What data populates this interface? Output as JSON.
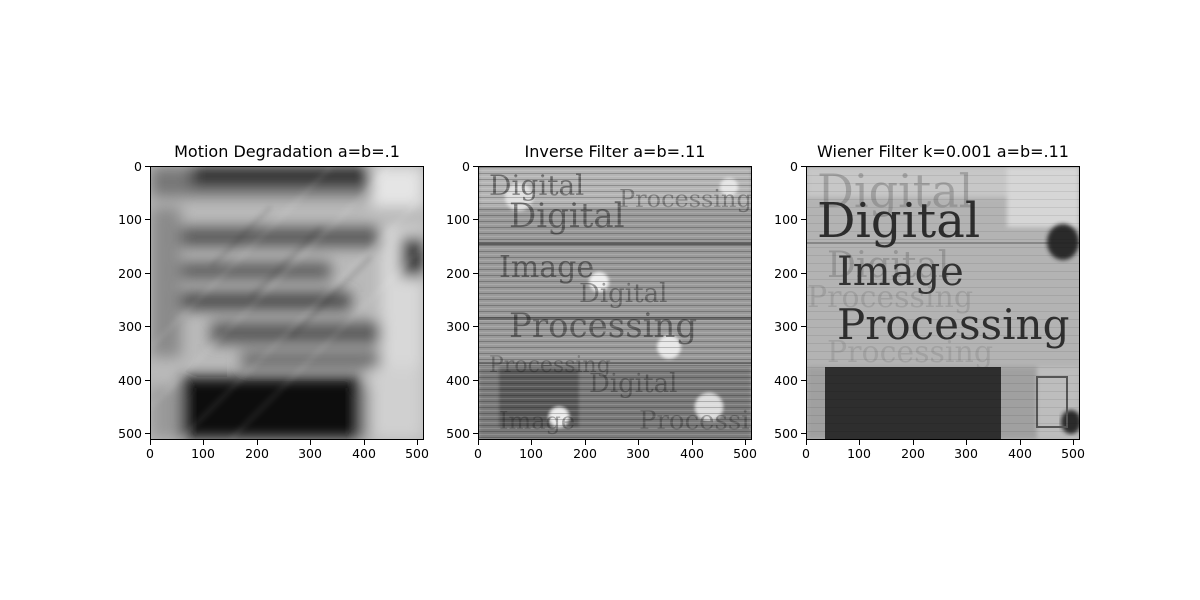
{
  "figure": {
    "panels": [
      {
        "title": "Motion Degradation a=b=.1",
        "image_description": "heavily motion-blurred grayscale image of printed text, diagonally streaked",
        "x_ticks": [
          "0",
          "100",
          "200",
          "300",
          "400",
          "500"
        ],
        "y_ticks": [
          "0",
          "100",
          "200",
          "300",
          "400",
          "500"
        ]
      },
      {
        "title": "Inverse Filter a=b=.11",
        "image_description": "noisy restored grayscale image with repeated ghosted overlapping text 'Digital Image Processing'",
        "x_ticks": [
          "0",
          "100",
          "200",
          "300",
          "400",
          "500"
        ],
        "y_ticks": [
          "0",
          "100",
          "200",
          "300",
          "400",
          "500"
        ],
        "ghost_text": [
          "Digital",
          "Image",
          "Processing",
          "Digital",
          "Processing"
        ]
      },
      {
        "title": "Wiener Filter k=0.001 a=b=.11",
        "image_description": "restored grayscale image showing the words 'Digital Image Processing' with faint ghost copies",
        "x_ticks": [
          "0",
          "100",
          "200",
          "300",
          "400",
          "500"
        ],
        "y_ticks": [
          "0",
          "100",
          "200",
          "300",
          "400",
          "500"
        ],
        "restored_text": [
          "Digital",
          "Image",
          "Processing"
        ]
      }
    ]
  }
}
